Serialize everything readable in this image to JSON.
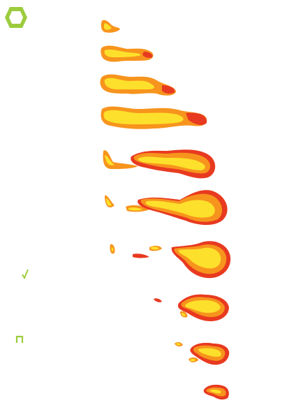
{
  "sprite_sheet": {
    "subject": "fire-burst",
    "frame_count": 10,
    "colors": {
      "outer": "#e83a20",
      "mid": "#f7941d",
      "inner": "#fde02b",
      "accent": "#9ccc3d"
    },
    "icons": [
      "hexagon-logo-icon",
      "green-checkmark-icon",
      "green-bracket-icon"
    ]
  }
}
